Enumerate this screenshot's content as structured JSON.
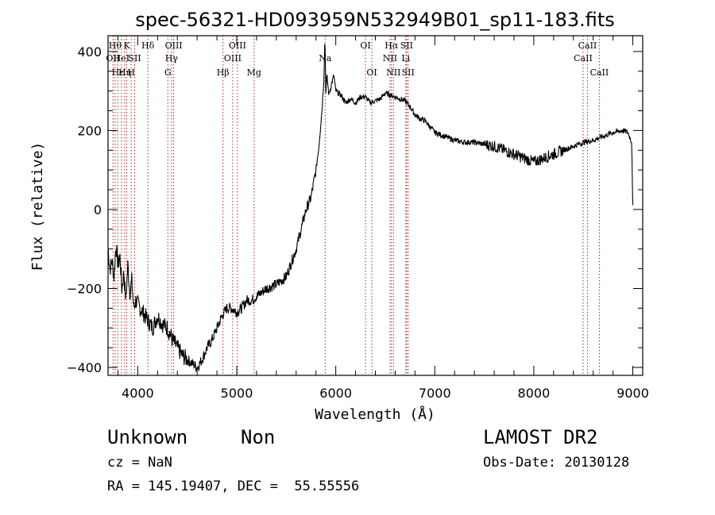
{
  "chart_data": {
    "type": "line",
    "title": "spec-56321-HD093959N532949B01_sp11-183.fits",
    "xlabel": "Wavelength (Å)",
    "ylabel": "Flux (relative)",
    "xlim": [
      3700,
      9100
    ],
    "ylim": [
      -420,
      440
    ],
    "xticks": [
      4000,
      5000,
      6000,
      7000,
      8000,
      9000
    ],
    "yticks": [
      -400,
      -200,
      0,
      200,
      400
    ],
    "line_color": "#000000",
    "marker_color": "#b22222",
    "spectrum": {
      "x": [
        3700,
        3720,
        3740,
        3760,
        3780,
        3800,
        3820,
        3840,
        3860,
        3880,
        3900,
        3920,
        3940,
        3960,
        3980,
        4000,
        4050,
        4100,
        4150,
        4200,
        4250,
        4300,
        4350,
        4400,
        4450,
        4500,
        4550,
        4600,
        4650,
        4700,
        4750,
        4800,
        4850,
        4900,
        4950,
        5000,
        5050,
        5100,
        5150,
        5200,
        5300,
        5400,
        5500,
        5600,
        5650,
        5700,
        5750,
        5800,
        5830,
        5860,
        5880,
        5890,
        5900,
        5910,
        5930,
        5950,
        5980,
        6000,
        6050,
        6100,
        6150,
        6200,
        6250,
        6300,
        6350,
        6400,
        6450,
        6500,
        6550,
        6600,
        6650,
        6700,
        6750,
        6800,
        6850,
        6900,
        6950,
        7000,
        7100,
        7200,
        7300,
        7400,
        7500,
        7600,
        7700,
        7750,
        7800,
        7850,
        7900,
        7950,
        8000,
        8050,
        8100,
        8200,
        8300,
        8400,
        8500,
        8600,
        8700,
        8800,
        8900,
        8950,
        8990,
        9000
      ],
      "y": [
        -100,
        -150,
        -130,
        -170,
        -90,
        -140,
        -120,
        -200,
        -160,
        -230,
        -140,
        -210,
        -180,
        -250,
        -230,
        -240,
        -260,
        -280,
        -300,
        -270,
        -290,
        -300,
        -330,
        -350,
        -370,
        -380,
        -390,
        -400,
        -380,
        -350,
        -330,
        -300,
        -270,
        -250,
        -250,
        -260,
        -250,
        -230,
        -230,
        -220,
        -200,
        -190,
        -170,
        -100,
        -50,
        0,
        30,
        100,
        160,
        250,
        330,
        440,
        300,
        340,
        290,
        310,
        340,
        300,
        290,
        270,
        280,
        270,
        285,
        285,
        270,
        275,
        280,
        295,
        290,
        285,
        280,
        275,
        260,
        240,
        230,
        225,
        210,
        195,
        185,
        175,
        170,
        170,
        165,
        160,
        150,
        145,
        140,
        135,
        130,
        125,
        120,
        125,
        130,
        140,
        150,
        160,
        170,
        175,
        185,
        195,
        200,
        195,
        170,
        5
      ]
    },
    "lines": [
      {
        "x": 3750,
        "label": "OII",
        "row": 1
      },
      {
        "x": 3771,
        "label": "Hθ",
        "row": 0
      },
      {
        "x": 3798,
        "label": "Hε",
        "row": 2
      },
      {
        "x": 3835,
        "label": "HeI",
        "row": 1
      },
      {
        "x": 3869,
        "label": "Hη",
        "row": 2
      },
      {
        "x": 3889,
        "label": "K",
        "row": 0
      },
      {
        "x": 3934,
        "label": "H",
        "row": 2
      },
      {
        "x": 3969,
        "label": "SII",
        "row": 1
      },
      {
        "x": 4102,
        "label": "Hδ",
        "row": 0
      },
      {
        "x": 4304,
        "label": "G",
        "row": 2
      },
      {
        "x": 4341,
        "label": "Hγ",
        "row": 1
      },
      {
        "x": 4363,
        "label": "OIII",
        "row": 0
      },
      {
        "x": 4861,
        "label": "Hβ",
        "row": 2
      },
      {
        "x": 4959,
        "label": "OIII",
        "row": 1
      },
      {
        "x": 5007,
        "label": "OIII",
        "row": 0
      },
      {
        "x": 5175,
        "label": "Mg",
        "row": 2
      },
      {
        "x": 5893,
        "label": "Na",
        "row": 1
      },
      {
        "x": 6300,
        "label": "OI",
        "row": 0
      },
      {
        "x": 6364,
        "label": "OI",
        "row": 2
      },
      {
        "x": 6548,
        "label": "NII",
        "row": 1
      },
      {
        "x": 6563,
        "label": "Hα",
        "row": 0
      },
      {
        "x": 6583,
        "label": "NII",
        "row": 2
      },
      {
        "x": 6707,
        "label": "Li",
        "row": 1
      },
      {
        "x": 6716,
        "label": "SII",
        "row": 0
      },
      {
        "x": 6731,
        "label": "SII",
        "row": 2
      },
      {
        "x": 8498,
        "label": "CaII",
        "row": 1
      },
      {
        "x": 8542,
        "label": "CaII",
        "row": 0
      },
      {
        "x": 8662,
        "label": "CaII",
        "row": 2
      }
    ]
  },
  "info": {
    "classification": "Unknown",
    "subclass": "Non",
    "survey": "LAMOST DR2",
    "cz": "cz = NaN",
    "obs_date": "Obs-Date: 20130128",
    "coords": "RA = 145.19407, DEC =  55.55556"
  }
}
